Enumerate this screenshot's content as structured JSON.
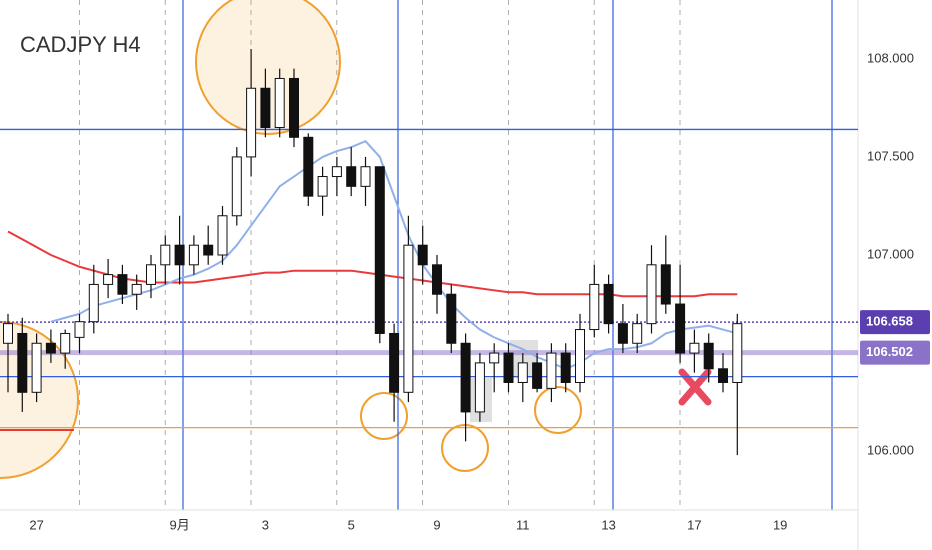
{
  "chart_data": {
    "type": "candlestick",
    "title": "CADJPY  H4",
    "categories": [
      null,
      null,
      "27",
      null,
      null,
      null,
      null,
      null,
      null,
      null,
      null,
      null,
      "9月",
      null,
      null,
      null,
      null,
      null,
      "3",
      null,
      null,
      null,
      null,
      null,
      "5",
      null,
      null,
      null,
      null,
      null,
      "9",
      null,
      null,
      null,
      null,
      null,
      "11",
      null,
      null,
      null,
      null,
      null,
      "13",
      null,
      null,
      null,
      null,
      null,
      "17",
      null,
      null,
      null,
      null,
      null,
      "19"
    ],
    "open": [
      106.55,
      106.6,
      106.3,
      106.55,
      106.5,
      106.58,
      106.66,
      106.85,
      106.9,
      106.8,
      106.85,
      106.95,
      107.05,
      106.95,
      107.05,
      107.0,
      107.2,
      107.5,
      107.85,
      107.65,
      107.9,
      107.6,
      107.3,
      107.4,
      107.45,
      107.35,
      107.45,
      106.6,
      106.3,
      107.05,
      106.95,
      106.8,
      106.55,
      106.2,
      106.45,
      106.5,
      106.35,
      106.45,
      106.32,
      106.5,
      106.35,
      106.62,
      106.85,
      106.65,
      106.55,
      106.65,
      106.95,
      106.75,
      106.5,
      106.55,
      106.42,
      106.35,
      null,
      null,
      null
    ],
    "high": [
      106.7,
      106.68,
      106.6,
      106.62,
      106.62,
      106.7,
      106.95,
      106.98,
      106.95,
      106.9,
      107.0,
      107.1,
      107.2,
      107.1,
      107.15,
      107.25,
      107.55,
      108.05,
      107.95,
      107.95,
      107.95,
      107.62,
      107.45,
      107.5,
      107.55,
      107.5,
      107.45,
      106.65,
      107.2,
      107.15,
      107.0,
      106.85,
      106.6,
      106.5,
      106.55,
      106.55,
      106.5,
      106.5,
      106.55,
      106.55,
      106.7,
      106.95,
      106.9,
      106.75,
      106.7,
      107.05,
      107.1,
      106.95,
      106.62,
      106.6,
      106.5,
      106.7,
      null,
      null,
      null
    ],
    "low": [
      106.3,
      106.2,
      106.25,
      106.45,
      106.42,
      106.5,
      106.6,
      106.78,
      106.75,
      106.72,
      106.78,
      106.85,
      106.85,
      106.9,
      106.95,
      106.95,
      107.15,
      107.4,
      107.6,
      107.6,
      107.55,
      107.25,
      107.2,
      107.3,
      107.3,
      107.25,
      106.55,
      106.15,
      106.25,
      106.85,
      106.7,
      106.5,
      106.05,
      106.15,
      106.3,
      106.3,
      106.25,
      106.3,
      106.25,
      106.3,
      106.3,
      106.58,
      106.6,
      106.5,
      106.5,
      106.6,
      106.7,
      106.45,
      106.4,
      106.35,
      106.3,
      105.98,
      null,
      null,
      null
    ],
    "close": [
      106.65,
      106.3,
      106.55,
      106.5,
      106.6,
      106.66,
      106.85,
      106.9,
      106.8,
      106.85,
      106.95,
      107.05,
      106.95,
      107.05,
      107.0,
      107.2,
      107.5,
      107.85,
      107.65,
      107.9,
      107.6,
      107.3,
      107.4,
      107.45,
      107.35,
      107.45,
      106.6,
      106.3,
      107.05,
      106.95,
      106.8,
      106.55,
      106.2,
      106.45,
      106.5,
      106.35,
      106.45,
      106.32,
      106.5,
      106.35,
      106.62,
      106.85,
      106.65,
      106.55,
      106.65,
      106.95,
      106.75,
      106.5,
      106.55,
      106.42,
      106.35,
      106.65,
      null,
      null,
      null
    ],
    "series": [
      {
        "color": "#e8393b",
        "values": [
          107.12,
          107.08,
          107.04,
          107.0,
          106.97,
          106.94,
          106.92,
          106.9,
          106.88,
          106.87,
          106.86,
          106.86,
          106.86,
          106.86,
          106.87,
          106.88,
          106.89,
          106.9,
          106.91,
          106.91,
          106.92,
          106.92,
          106.92,
          106.92,
          106.92,
          106.91,
          106.9,
          106.89,
          106.88,
          106.87,
          106.86,
          106.85,
          106.84,
          106.83,
          106.82,
          106.81,
          106.81,
          106.8,
          106.8,
          106.8,
          106.8,
          106.8,
          106.8,
          106.79,
          106.79,
          106.79,
          106.79,
          106.79,
          106.79,
          106.8,
          106.8,
          106.8,
          null,
          null,
          null
        ]
      },
      {
        "color": "#8fb0ea",
        "values": [
          null,
          null,
          null,
          106.66,
          106.68,
          106.7,
          106.74,
          106.76,
          106.78,
          106.8,
          106.82,
          106.85,
          106.88,
          106.9,
          106.93,
          106.97,
          107.05,
          107.15,
          107.25,
          107.35,
          107.4,
          107.45,
          107.5,
          107.53,
          107.55,
          107.58,
          107.5,
          107.3,
          107.1,
          106.95,
          106.85,
          106.75,
          106.68,
          106.62,
          106.58,
          106.55,
          106.52,
          106.48,
          106.45,
          106.42,
          106.45,
          106.5,
          106.52,
          106.52,
          106.53,
          106.55,
          106.6,
          106.62,
          106.63,
          106.64,
          106.62,
          106.6,
          null,
          null,
          null
        ]
      }
    ],
    "hlines": [
      {
        "value": 107.64,
        "color": "#2f5fe0"
      },
      {
        "value": 106.38,
        "color": "#2f5fe0"
      },
      {
        "value": 106.12,
        "color": "#f0a030"
      }
    ],
    "price_labels": [
      {
        "value": 106.658,
        "color": "#5b3fb0"
      },
      {
        "value": 106.502,
        "color": "#8a72c8"
      }
    ],
    "ylim": [
      105.7,
      108.3
    ],
    "yticks": [
      {
        "value": 106,
        "label": "106.000"
      },
      {
        "value": 107,
        "label": "107.000"
      },
      {
        "value": 107.5,
        "label": "107.500"
      },
      {
        "value": 108,
        "label": "108.000"
      }
    ],
    "grid": true
  }
}
